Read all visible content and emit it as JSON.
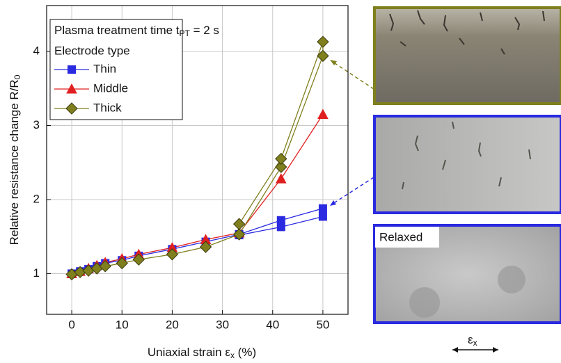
{
  "chart_data": {
    "type": "line",
    "x_label": [
      "Uniaxial strain ε",
      "x",
      " (%)"
    ],
    "y_label": [
      "Relative resistance change R/R",
      "0"
    ],
    "legend_title": [
      "Plasma treatment time t",
      "PT",
      " = 2 s"
    ],
    "legend_subtitle": "Electrode type",
    "x": [
      0,
      1.67,
      3.33,
      5,
      6.67,
      10,
      13.33,
      20,
      26.67,
      33.33,
      41.67,
      50,
      50,
      41.67,
      33.33
    ],
    "series": [
      {
        "name": "Thin",
        "color": "#2a2ae0",
        "marker": "square",
        "values": [
          1.0,
          1.03,
          1.06,
          1.1,
          1.14,
          1.18,
          1.24,
          1.33,
          1.43,
          1.53,
          1.72,
          1.88,
          1.77,
          1.63,
          1.52
        ]
      },
      {
        "name": "Middle",
        "color": "#e02020",
        "marker": "triangle",
        "values": [
          1.0,
          1.03,
          1.07,
          1.11,
          1.15,
          1.2,
          1.26,
          1.35,
          1.46,
          1.55,
          2.28,
          3.15,
          null,
          null,
          null
        ]
      },
      {
        "name": "Thick",
        "color": "#7f7f1e",
        "marker": "diamond",
        "values": [
          0.99,
          1.02,
          1.04,
          1.07,
          1.1,
          1.14,
          1.19,
          1.26,
          1.36,
          1.53,
          2.44,
          3.94,
          4.13,
          2.55,
          1.67
        ]
      }
    ],
    "xlim": [
      -5,
      55
    ],
    "ylim": [
      0.45,
      4.62
    ],
    "xticks": [
      0,
      10,
      20,
      30,
      40,
      50
    ],
    "yticks": [
      1,
      2,
      3,
      4
    ],
    "grid": true,
    "legend": "upper left",
    "annotations": {
      "relaxed": "Relaxed",
      "strain_direction": [
        "ε",
        "x"
      ]
    }
  }
}
